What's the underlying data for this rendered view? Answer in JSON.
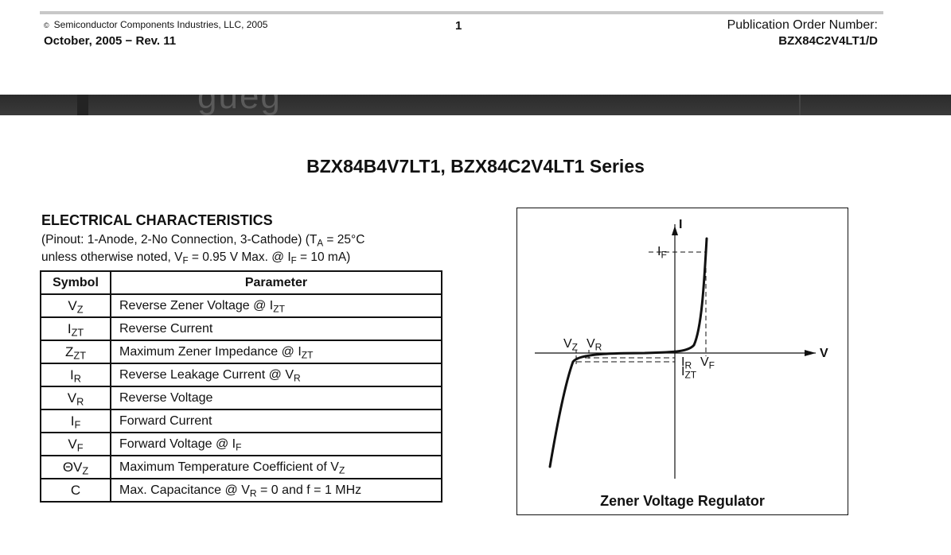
{
  "header": {
    "copyright_symbol": "©",
    "copyright": "Semiconductor Components Industries, LLC, 2005",
    "revision": "October, 2005 − Rev. 11",
    "page_number": "1",
    "publication_label": "Publication Order Number:",
    "publication_number": "BZX84C2V4LT1/D"
  },
  "band": {
    "ghost_text": "gueg"
  },
  "series_title": "BZX84B4V7LT1, BZX84C2V4LT1 Series",
  "electrical": {
    "heading": "ELECTRICAL CHARACTERISTICS",
    "note": {
      "line1_a": "(Pinout: 1-Anode, 2-No Connection, 3-Cathode) (T",
      "line1_sub": "A",
      "line1_b": " = 25°C",
      "line2_a": "unless otherwise noted, V",
      "line2_sub1": "F",
      "line2_b": " = 0.95 V Max. @ I",
      "line2_sub2": "F",
      "line2_c": " = 10 mA)"
    },
    "table": {
      "col_symbol": "Symbol",
      "col_parameter": "Parameter",
      "rows": [
        {
          "sym": "V",
          "sym_sub": "Z",
          "param": "Reverse Zener Voltage @ I",
          "param_sub": "ZT",
          "param_tail": ""
        },
        {
          "sym": "I",
          "sym_sub": "ZT",
          "param": "Reverse Current",
          "param_sub": "",
          "param_tail": ""
        },
        {
          "sym": "Z",
          "sym_sub": "ZT",
          "param": "Maximum Zener Impedance @ I",
          "param_sub": "ZT",
          "param_tail": ""
        },
        {
          "sym": "I",
          "sym_sub": "R",
          "param": "Reverse Leakage Current @ V",
          "param_sub": "R",
          "param_tail": ""
        },
        {
          "sym": "V",
          "sym_sub": "R",
          "param": "Reverse Voltage",
          "param_sub": "",
          "param_tail": ""
        },
        {
          "sym": "I",
          "sym_sub": "F",
          "param": "Forward Current",
          "param_sub": "",
          "param_tail": ""
        },
        {
          "sym": "V",
          "sym_sub": "F",
          "param": "Forward Voltage @ I",
          "param_sub": "F",
          "param_tail": ""
        },
        {
          "sym": "ΘV",
          "sym_sub": "Z",
          "param": "Maximum Temperature Coefficient of V",
          "param_sub": "Z",
          "param_tail": ""
        },
        {
          "sym": "C",
          "sym_sub": "",
          "param": "Max. Capacitance @ V",
          "param_sub": "R",
          "param_tail": " = 0 and f = 1 MHz"
        }
      ]
    }
  },
  "figure": {
    "caption": "Zener Voltage Regulator",
    "axis_i": "I",
    "axis_v": "V",
    "label_if": {
      "main": "I",
      "sub": "F"
    },
    "label_vz": {
      "main": "V",
      "sub": "Z"
    },
    "label_vr": {
      "main": "V",
      "sub": "R"
    },
    "label_ir": {
      "main": "I",
      "sub": "R"
    },
    "label_vf": {
      "main": "V",
      "sub": "F"
    },
    "label_izt": {
      "main": "I",
      "sub": "ZT"
    }
  }
}
